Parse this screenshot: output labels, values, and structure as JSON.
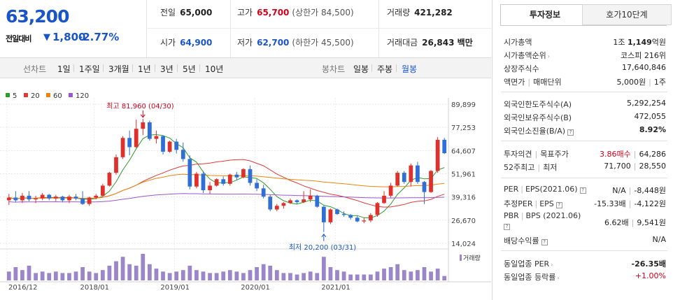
{
  "price": {
    "current": "63,200",
    "change_label": "전일대비",
    "change_icon": "down-triangle",
    "change_symbol": "▼",
    "change_value": "1,800",
    "change_pct": "-2.77%",
    "down_color": "#1a55c8",
    "up_color": "#d0021b"
  },
  "summary": {
    "prev_close": {
      "label": "전일",
      "value": "65,000"
    },
    "high": {
      "label": "고가",
      "value": "65,700",
      "sub": "(상한가 84,500)"
    },
    "volume": {
      "label": "거래량",
      "value": "421,282"
    },
    "open": {
      "label": "시가",
      "value": "64,900"
    },
    "low": {
      "label": "저가",
      "value": "62,700",
      "sub": "(하한가 45,500)"
    },
    "amount": {
      "label": "거래대금",
      "value": "26,843 백만"
    }
  },
  "toolbar": {
    "period_label": "선차트",
    "periods": [
      "1일",
      "1주일",
      "3개월",
      "1년",
      "3년",
      "5년",
      "10년"
    ],
    "candle_label": "봉차트",
    "candles": [
      "일봉",
      "주봉",
      "월봉"
    ],
    "active_candle": "월봉"
  },
  "chart_data": {
    "type": "candlestick",
    "interval": "monthly",
    "y_ticks": [
      "89,899",
      "77,253",
      "64,607",
      "51,961",
      "39,316",
      "26,670",
      "14,024"
    ],
    "ylim": [
      14024,
      89899
    ],
    "x_tick_labels": [
      "2016/12",
      "2018/01",
      "2019/01",
      "2020/01",
      "2021/01"
    ],
    "legend": [
      {
        "name": "5",
        "color": "#2e9b2e"
      },
      {
        "name": "20",
        "color": "#e03a3a"
      },
      {
        "name": "60",
        "color": "#e8860c"
      },
      {
        "name": "120",
        "color": "#9b59c6"
      }
    ],
    "max_annotation": {
      "label": "최고",
      "value": "81,960",
      "date": "(04/30)"
    },
    "min_annotation": {
      "label": "최저",
      "value": "20,200",
      "date": "(03/31)"
    },
    "volume_label": "거래량",
    "candles": [
      {
        "o": 37500,
        "h": 41000,
        "l": 35000,
        "c": 39000
      },
      {
        "o": 39000,
        "h": 42500,
        "l": 36500,
        "c": 37500
      },
      {
        "o": 37500,
        "h": 41500,
        "l": 36000,
        "c": 40000
      },
      {
        "o": 40000,
        "h": 42500,
        "l": 37000,
        "c": 38000
      },
      {
        "o": 38000,
        "h": 40000,
        "l": 36000,
        "c": 38500
      },
      {
        "o": 38500,
        "h": 41500,
        "l": 37500,
        "c": 40500
      },
      {
        "o": 40500,
        "h": 41000,
        "l": 37500,
        "c": 38500
      },
      {
        "o": 38500,
        "h": 40500,
        "l": 37000,
        "c": 39500
      },
      {
        "o": 39500,
        "h": 40000,
        "l": 36500,
        "c": 37500
      },
      {
        "o": 37500,
        "h": 40500,
        "l": 36000,
        "c": 39500
      },
      {
        "o": 39500,
        "h": 41000,
        "l": 37500,
        "c": 38500
      },
      {
        "o": 38500,
        "h": 42500,
        "l": 35000,
        "c": 35500
      },
      {
        "o": 35500,
        "h": 39500,
        "l": 34500,
        "c": 39000
      },
      {
        "o": 39000,
        "h": 41000,
        "l": 38000,
        "c": 40000
      },
      {
        "o": 40000,
        "h": 46500,
        "l": 39500,
        "c": 45500
      },
      {
        "o": 45500,
        "h": 53000,
        "l": 45000,
        "c": 52500
      },
      {
        "o": 52500,
        "h": 62500,
        "l": 51500,
        "c": 61000
      },
      {
        "o": 61000,
        "h": 72500,
        "l": 60000,
        "c": 71500
      },
      {
        "o": 71500,
        "h": 75500,
        "l": 62000,
        "c": 66500
      },
      {
        "o": 66500,
        "h": 81500,
        "l": 66000,
        "c": 76500
      },
      {
        "o": 76500,
        "h": 81960,
        "l": 73000,
        "c": 80000
      },
      {
        "o": 80000,
        "h": 81000,
        "l": 70000,
        "c": 71000
      },
      {
        "o": 71000,
        "h": 75500,
        "l": 68500,
        "c": 72500
      },
      {
        "o": 72500,
        "h": 73000,
        "l": 62500,
        "c": 64000
      },
      {
        "o": 64000,
        "h": 70000,
        "l": 63500,
        "c": 69500
      },
      {
        "o": 69500,
        "h": 71000,
        "l": 63000,
        "c": 65000
      },
      {
        "o": 65000,
        "h": 69000,
        "l": 58500,
        "c": 60000
      },
      {
        "o": 60000,
        "h": 62000,
        "l": 43500,
        "c": 45000
      },
      {
        "o": 45000,
        "h": 53000,
        "l": 44000,
        "c": 52000
      },
      {
        "o": 52000,
        "h": 53500,
        "l": 41500,
        "c": 43000
      },
      {
        "o": 43000,
        "h": 47500,
        "l": 41000,
        "c": 45500
      },
      {
        "o": 45500,
        "h": 49500,
        "l": 45000,
        "c": 49000
      },
      {
        "o": 49000,
        "h": 50500,
        "l": 45500,
        "c": 46500
      },
      {
        "o": 46500,
        "h": 52000,
        "l": 45500,
        "c": 51500
      },
      {
        "o": 51500,
        "h": 53000,
        "l": 48500,
        "c": 50000
      },
      {
        "o": 50000,
        "h": 55000,
        "l": 49500,
        "c": 54500
      },
      {
        "o": 54500,
        "h": 56500,
        "l": 45500,
        "c": 47000
      },
      {
        "o": 47000,
        "h": 49000,
        "l": 42500,
        "c": 44000
      },
      {
        "o": 44000,
        "h": 46000,
        "l": 38500,
        "c": 39500
      },
      {
        "o": 39500,
        "h": 40500,
        "l": 31500,
        "c": 32500
      },
      {
        "o": 32500,
        "h": 35500,
        "l": 31500,
        "c": 34500
      },
      {
        "o": 34500,
        "h": 36500,
        "l": 33000,
        "c": 36000
      },
      {
        "o": 36000,
        "h": 38500,
        "l": 35500,
        "c": 37500
      },
      {
        "o": 37500,
        "h": 38000,
        "l": 35500,
        "c": 36500
      },
      {
        "o": 36500,
        "h": 42500,
        "l": 36000,
        "c": 38000
      },
      {
        "o": 38000,
        "h": 43500,
        "l": 36500,
        "c": 40000
      },
      {
        "o": 40000,
        "h": 40500,
        "l": 33500,
        "c": 34000
      },
      {
        "o": 34000,
        "h": 34500,
        "l": 20200,
        "c": 25500
      },
      {
        "o": 25500,
        "h": 33000,
        "l": 24500,
        "c": 32500
      },
      {
        "o": 32500,
        "h": 33000,
        "l": 29500,
        "c": 30000
      },
      {
        "o": 30000,
        "h": 31500,
        "l": 28500,
        "c": 29500
      },
      {
        "o": 29500,
        "h": 30000,
        "l": 27000,
        "c": 28000
      },
      {
        "o": 28000,
        "h": 29000,
        "l": 25500,
        "c": 26000
      },
      {
        "o": 26000,
        "h": 28000,
        "l": 25000,
        "c": 26500
      },
      {
        "o": 26500,
        "h": 30500,
        "l": 25500,
        "c": 29500
      },
      {
        "o": 29500,
        "h": 36500,
        "l": 28500,
        "c": 36000
      },
      {
        "o": 36000,
        "h": 42500,
        "l": 35500,
        "c": 40000
      },
      {
        "o": 40000,
        "h": 47000,
        "l": 39000,
        "c": 45500
      },
      {
        "o": 45500,
        "h": 53500,
        "l": 45000,
        "c": 52500
      },
      {
        "o": 52500,
        "h": 53500,
        "l": 46500,
        "c": 47500
      },
      {
        "o": 47500,
        "h": 57500,
        "l": 45000,
        "c": 56500
      },
      {
        "o": 56500,
        "h": 58500,
        "l": 46500,
        "c": 47500
      },
      {
        "o": 47500,
        "h": 48000,
        "l": 35500,
        "c": 42000
      },
      {
        "o": 42000,
        "h": 54000,
        "l": 41500,
        "c": 53500
      },
      {
        "o": 53500,
        "h": 72000,
        "l": 52500,
        "c": 70500
      },
      {
        "o": 70500,
        "h": 71500,
        "l": 62700,
        "c": 63200
      }
    ],
    "volume": [
      6,
      9,
      7,
      10,
      5,
      6,
      5,
      6,
      5,
      5,
      6,
      9,
      6,
      5,
      7,
      10,
      13,
      16,
      11,
      10,
      18,
      11,
      8,
      6,
      5,
      6,
      7,
      10,
      7,
      6,
      5,
      5,
      6,
      7,
      6,
      5,
      7,
      9,
      11,
      10,
      7,
      5,
      5,
      4,
      5,
      6,
      5,
      16,
      9,
      7,
      6,
      4,
      4,
      4,
      4,
      6,
      8,
      9,
      11,
      7,
      6,
      7,
      9,
      6,
      8,
      3
    ]
  },
  "right_panel": {
    "tabs": [
      "투자정보",
      "호가10단계"
    ],
    "market_cap": {
      "label": "시가총액",
      "value_a": "1조",
      "value_b": "1,149",
      "unit": "억원"
    },
    "market_rank": {
      "label": "시가총액순위",
      "value_a": "코스피",
      "value_b": "216위"
    },
    "shares": {
      "label": "상장주식수",
      "value": "17,640,846"
    },
    "par": {
      "label_a": "액면가",
      "label_b": "매매단위",
      "value_a": "5,000원",
      "value_b": "1주"
    },
    "foreign_limit": {
      "label": "외국인한도주식수(A)",
      "value": "5,292,254"
    },
    "foreign_hold": {
      "label": "외국인보유주식수(B)",
      "value": "472,055"
    },
    "foreign_ratio": {
      "label": "외국인소진율(B/A)",
      "value": "8.92%"
    },
    "opinion": {
      "label_a": "투자의견",
      "label_b": "목표주가",
      "value_a": "3.86매수",
      "value_b": "64,286"
    },
    "week52": {
      "label_a": "52주최고",
      "label_b": "최저",
      "value_a": "71,700",
      "value_b": "28,550"
    },
    "per_eps": {
      "label": "PER",
      "label_b": "EPS(2021.06)",
      "value_a": "N/A",
      "value_b": "-8,448원"
    },
    "est_per_eps": {
      "label": "추정PER",
      "label_b": "EPS",
      "value_a": "-15.33배",
      "value_b": "-4,122원"
    },
    "pbr_bps": {
      "label": "PBR",
      "label_b": "BPS (2021.06)",
      "value_a": "6.62배",
      "value_b": "9,541원"
    },
    "dividend": {
      "label": "배당수익률",
      "value": "N/A"
    },
    "sector_per": {
      "label": "동일업종 PER",
      "value": "-26.35배"
    },
    "sector_rate": {
      "label": "동일업종 등락률",
      "value": "+1.00%"
    }
  }
}
